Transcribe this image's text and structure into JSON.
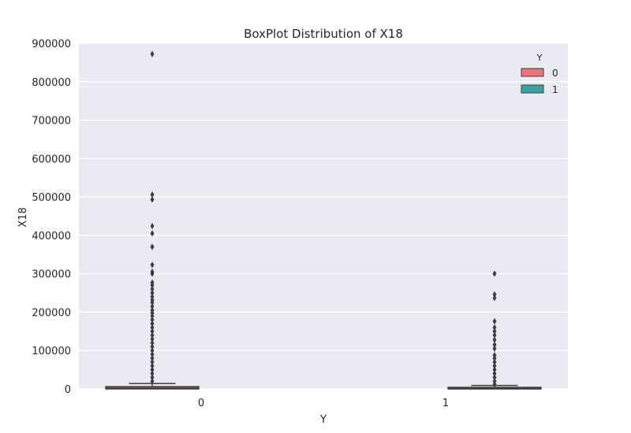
{
  "chart_data": {
    "type": "box",
    "title": "BoxPlot Distribution of X18",
    "xlabel": "Y",
    "ylabel": "X18",
    "categories": [
      "0",
      "1"
    ],
    "ylim": [
      0,
      900000
    ],
    "yticks": [
      0,
      100000,
      200000,
      300000,
      400000,
      500000,
      600000,
      700000,
      800000,
      900000
    ],
    "ytick_labels": [
      "0",
      "100000",
      "200000",
      "300000",
      "400000",
      "500000",
      "600000",
      "700000",
      "800000",
      "900000"
    ],
    "grid": true,
    "legend": {
      "title": "Y",
      "placement": "top-right",
      "entries": [
        "0",
        "1"
      ]
    },
    "colors": {
      "0": "#e8747c",
      "1": "#3ba3a0",
      "background": "#eaeaf2",
      "box_line": "#3d3d3d"
    },
    "series": [
      {
        "name": "0",
        "category": "0",
        "hue_slot": 0,
        "stats": {
          "min": 0,
          "q1": 0,
          "median": 2000,
          "q3": 6000,
          "max": 14000
        },
        "outliers": [
          872000,
          506000,
          493000,
          424000,
          405000,
          370000,
          323000,
          305000,
          300000,
          277000,
          270000,
          260000,
          250000,
          240000,
          232000,
          225000,
          215000,
          205000,
          198000,
          190000,
          180000,
          170000,
          160000,
          150000,
          140000,
          130000,
          120000,
          110000,
          100000,
          90000,
          80000,
          70000,
          60000,
          50000,
          40000,
          30000,
          20000
        ]
      },
      {
        "name": "1",
        "category": "1",
        "hue_slot": 1,
        "stats": {
          "min": 0,
          "q1": 0,
          "median": 1500,
          "q3": 4000,
          "max": 9000
        },
        "outliers": [
          300000,
          246000,
          237000,
          176000,
          160000,
          150000,
          140000,
          128000,
          115000,
          105000,
          88000,
          80000,
          70000,
          60000,
          50000,
          40000,
          30000,
          20000,
          12000
        ]
      }
    ]
  }
}
